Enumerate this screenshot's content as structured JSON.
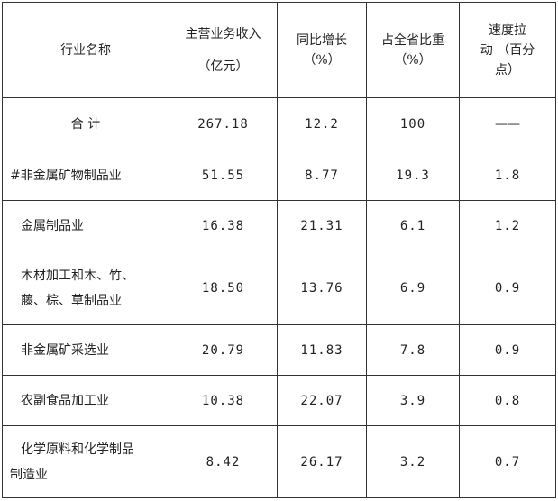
{
  "table": {
    "headers": {
      "name": "行业名称",
      "revenue": [
        "主营业务收入",
        "（亿元）"
      ],
      "growth": [
        "同比增长",
        "（%）"
      ],
      "share": [
        "占全省比重",
        "（%）"
      ],
      "pull": [
        "速度拉",
        "动  （百分",
        "点）"
      ]
    },
    "total": {
      "name": "合 计",
      "revenue": "267.18",
      "growth": "12.2",
      "share": "100",
      "pull": "——"
    },
    "rows": [
      {
        "name": [
          "#非金属矿物制品业"
        ],
        "revenue": "51.55",
        "growth": "8.77",
        "share": "19.3",
        "pull": "1.8"
      },
      {
        "name": [
          "金属制品业"
        ],
        "revenue": "16.38",
        "growth": "21.31",
        "share": "6.1",
        "pull": "1.2"
      },
      {
        "name": [
          "木材加工和木、竹、",
          "藤、棕、草制品业"
        ],
        "revenue": "18.50",
        "growth": "13.76",
        "share": "6.9",
        "pull": "0.9"
      },
      {
        "name": [
          "非金属矿采选业"
        ],
        "revenue": "20.79",
        "growth": "11.83",
        "share": "7.8",
        "pull": "0.9"
      },
      {
        "name": [
          "农副食品加工业"
        ],
        "revenue": "10.38",
        "growth": "22.07",
        "share": "3.9",
        "pull": "0.8"
      },
      {
        "name": [
          "化学原料和化学制品",
          "制造业"
        ],
        "revenue": "8.42",
        "growth": "26.17",
        "share": "3.2",
        "pull": "0.7"
      }
    ]
  }
}
